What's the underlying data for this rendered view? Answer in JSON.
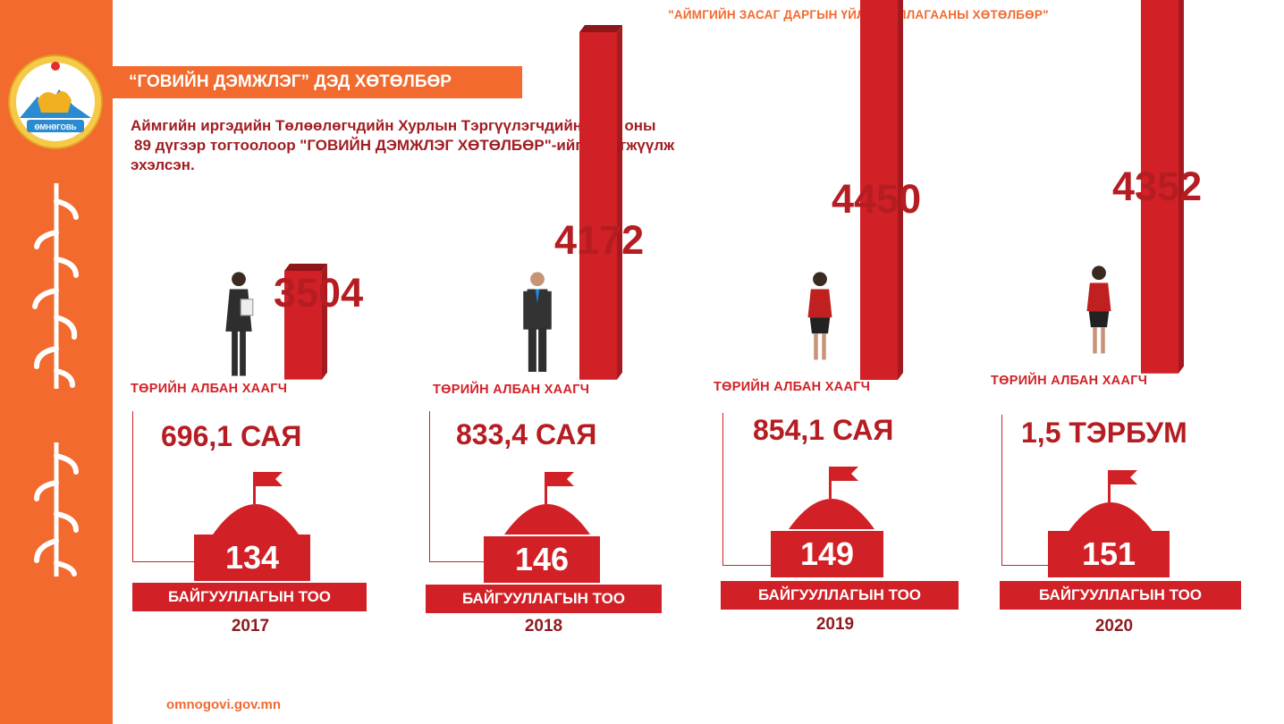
{
  "header": {
    "title": "\"АЙМГИЙН ЗАСАГ ДАРГЫН ҮЙЛ АЖИЛЛАГААНЫ ХӨТӨЛБӨР\""
  },
  "sidebar": {
    "logo_text": "ӨМНӨГОВЬ",
    "color": "#f26a2e"
  },
  "section": {
    "title": "“ГОВИЙН ДЭМЖЛЭГ” ДЭД ХӨТӨЛБӨР"
  },
  "intro": {
    "line1": "Аймгийн иргэдийн Төлөөлөгчдийн Хурлын Тэргүүлэгчдийн 2017 оны",
    "line2": "89 дүгээр тогтоолоор \"ГОВИЙН ДЭМЖЛЭГ ХӨТӨЛБӨР\"-ийг хэрэгжүүлж",
    "line3": "эхэлсэн."
  },
  "years": [
    {
      "year": "2017",
      "civil_servants": "3504",
      "civil_servants_value": 3504,
      "staff_label": "ТӨРИЙН АЛБАН ХААГЧ",
      "budget": "696,1 САЯ",
      "org_count": "134",
      "org_label": "БАЙГУУЛЛАГЫН ТОО"
    },
    {
      "year": "2018",
      "civil_servants": "4172",
      "civil_servants_value": 4172,
      "staff_label": "ТӨРИЙН АЛБАН ХААГЧ",
      "budget": "833,4 САЯ",
      "org_count": "146",
      "org_label": "БАЙГУУЛЛАГЫН ТОО"
    },
    {
      "year": "2019",
      "civil_servants": "4450",
      "civil_servants_value": 4450,
      "staff_label": "ТӨРИЙН АЛБАН ХААГЧ",
      "budget": "854,1 САЯ",
      "org_count": "149",
      "org_label": "БАЙГУУЛЛАГЫН ТОО"
    },
    {
      "year": "2020",
      "civil_servants": "4352",
      "civil_servants_value": 4352,
      "staff_label": "ТӨРИЙН АЛБАН ХААГЧ",
      "budget": "1,5 ТЭРБУМ",
      "org_count": "151",
      "org_label": "БАЙГУУЛЛАГЫН ТОО"
    }
  ],
  "colors": {
    "accent": "#f26a2e",
    "red": "#d12127",
    "dark_red": "#b51d22"
  },
  "footer": {
    "url": "omnogovi.gov.mn"
  }
}
